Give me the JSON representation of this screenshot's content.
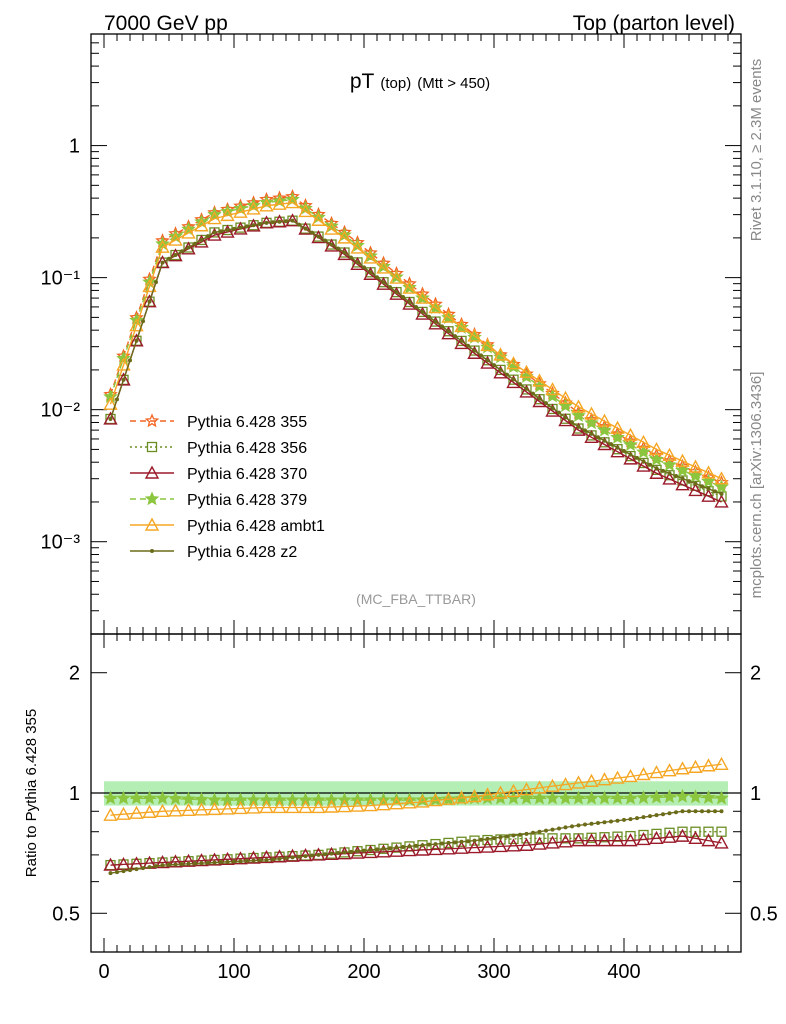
{
  "header": {
    "left": "7000 GeV pp",
    "right": "Top (parton level)"
  },
  "side_labels": {
    "rivet": "Rivet 3.1.10, ≥ 2.3M events",
    "mcplots": "mcplots.cern.ch [arXiv:1306.3436]"
  },
  "plot_title": {
    "main": "pT",
    "sub1": "(top)",
    "sub2": "(Mtt > 450)"
  },
  "analysis_label": "(MC_FBA_TTBAR)",
  "ratio_ylabel": "Ratio to Pythia 6.428 355",
  "colors": {
    "355": "#f26522",
    "356": "#6b8e23",
    "370": "#9b1a2a",
    "379": "#8cc63f",
    "ambt1": "#f5a623",
    "z2": "#6b6b1a",
    "band": "#9be89b"
  },
  "chart_data": [
    {
      "type": "line",
      "yscale": "log",
      "xlim": [
        -10,
        490
      ],
      "ylim": [
        0.0002,
        7
      ],
      "legend_position": "lower-left",
      "xticks": [
        "0",
        "100",
        "200",
        "300",
        "400"
      ],
      "yticks": [
        "10⁻³",
        "10⁻²",
        "10⁻¹",
        "1"
      ],
      "x": [
        5,
        45,
        85,
        125,
        145,
        185,
        245,
        305,
        365,
        425,
        475
      ],
      "series": [
        {
          "name": "Pythia 6.428 355",
          "marker": "star-open",
          "dash": "dashed",
          "color_key": "355",
          "values": [
            0.013,
            0.19,
            0.31,
            0.39,
            0.41,
            0.22,
            0.075,
            0.026,
            0.0095,
            0.0045,
            0.0028
          ]
        },
        {
          "name": "Pythia 6.428 356",
          "marker": "square-open",
          "dash": "dotted",
          "color_key": "356",
          "values": [
            0.0085,
            0.13,
            0.22,
            0.26,
            0.27,
            0.155,
            0.055,
            0.02,
            0.0072,
            0.0035,
            0.0022
          ]
        },
        {
          "name": "Pythia 6.428 370",
          "marker": "triangle-open",
          "dash": "solid",
          "color_key": "370",
          "values": [
            0.0085,
            0.13,
            0.21,
            0.26,
            0.27,
            0.15,
            0.053,
            0.019,
            0.007,
            0.0033,
            0.002
          ]
        },
        {
          "name": "Pythia 6.428 379",
          "marker": "star-filled",
          "dash": "dashed",
          "color_key": "379",
          "values": [
            0.0125,
            0.18,
            0.3,
            0.37,
            0.39,
            0.21,
            0.07,
            0.025,
            0.009,
            0.0042,
            0.0026
          ]
        },
        {
          "name": "Pythia 6.428 ambt1",
          "marker": "triangle-open",
          "dash": "solid",
          "color_key": "ambt1",
          "values": [
            0.011,
            0.17,
            0.28,
            0.35,
            0.37,
            0.2,
            0.07,
            0.026,
            0.0105,
            0.005,
            0.003
          ]
        },
        {
          "name": "Pythia 6.428 z2",
          "marker": "dot",
          "dash": "solid",
          "color_key": "z2",
          "values": [
            0.0085,
            0.13,
            0.22,
            0.26,
            0.27,
            0.155,
            0.055,
            0.02,
            0.0074,
            0.0036,
            0.0023
          ]
        }
      ]
    },
    {
      "type": "line",
      "ylabel": "Ratio to Pythia 6.428 355",
      "yscale": "log",
      "xlim": [
        -10,
        490
      ],
      "ylim": [
        0.4,
        2.5
      ],
      "xticks": [
        "0",
        "100",
        "200",
        "300",
        "400"
      ],
      "yticks": [
        "0.5",
        "1",
        "2"
      ],
      "x": [
        5,
        45,
        85,
        125,
        165,
        205,
        245,
        285,
        325,
        365,
        405,
        445,
        475
      ],
      "band": {
        "lower": 0.93,
        "upper": 1.07
      },
      "series": [
        {
          "name": "Pythia 6.428 355",
          "color_key": "355",
          "values": [
            1,
            1,
            1,
            1,
            1,
            1,
            1,
            1,
            1,
            1,
            1,
            1,
            1
          ]
        },
        {
          "name": "Pythia 6.428 356",
          "color_key": "356",
          "values": [
            0.66,
            0.67,
            0.68,
            0.69,
            0.7,
            0.72,
            0.74,
            0.76,
            0.77,
            0.77,
            0.78,
            0.8,
            0.8
          ]
        },
        {
          "name": "Pythia 6.428 370",
          "color_key": "370",
          "values": [
            0.66,
            0.67,
            0.68,
            0.69,
            0.7,
            0.71,
            0.72,
            0.73,
            0.74,
            0.76,
            0.76,
            0.78,
            0.75
          ]
        },
        {
          "name": "Pythia 6.428 379",
          "color_key": "379",
          "values": [
            0.97,
            0.97,
            0.96,
            0.96,
            0.96,
            0.96,
            0.96,
            0.97,
            0.97,
            0.97,
            0.97,
            0.98,
            0.97
          ]
        },
        {
          "name": "Pythia 6.428 ambt1",
          "color_key": "ambt1",
          "values": [
            0.88,
            0.9,
            0.91,
            0.92,
            0.92,
            0.93,
            0.95,
            0.98,
            1.02,
            1.06,
            1.1,
            1.15,
            1.18
          ]
        },
        {
          "name": "Pythia 6.428 z2",
          "color_key": "z2",
          "values": [
            0.63,
            0.66,
            0.67,
            0.68,
            0.7,
            0.72,
            0.74,
            0.76,
            0.79,
            0.83,
            0.86,
            0.9,
            0.9
          ]
        }
      ]
    }
  ]
}
